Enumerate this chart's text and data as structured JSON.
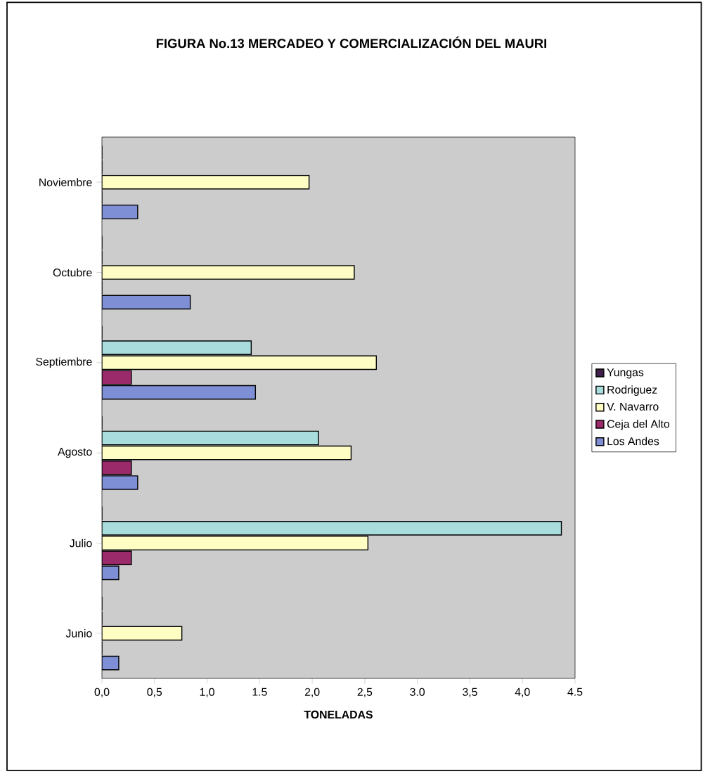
{
  "chart_data": {
    "type": "bar",
    "orientation": "horizontal",
    "title": "FIGURA No.13 MERCADEO Y COMERCIALIZACIÓN DEL MAURI",
    "xlabel": "TONELADAS",
    "categories": [
      "Noviembre",
      "Octubre",
      "Septiembre",
      "Agosto",
      "Julio",
      "Junio"
    ],
    "series": [
      {
        "name": "Yungas",
        "color": "#3d1f4a",
        "values": [
          0,
          0,
          0,
          0,
          0,
          0
        ]
      },
      {
        "name": "Rodriguez",
        "color": "#a9dcdc",
        "values": [
          0,
          0,
          1.42,
          2.06,
          4.37,
          0
        ]
      },
      {
        "name": "V. Navarro",
        "color": "#fefdc4",
        "values": [
          1.97,
          2.4,
          2.61,
          2.37,
          2.53,
          0.76
        ]
      },
      {
        "name": "Ceja del Alto",
        "color": "#9a2a6a",
        "values": [
          0,
          0,
          0.28,
          0.28,
          0.28,
          0
        ]
      },
      {
        "name": "Los Andes",
        "color": "#7e8fd6",
        "values": [
          0.34,
          0.84,
          1.46,
          0.34,
          0.16,
          0.16
        ]
      }
    ],
    "xlim": [
      0,
      4.5
    ],
    "xticks": [
      {
        "value": 0,
        "label": "0,0"
      },
      {
        "value": 0.5,
        "label": "0,5"
      },
      {
        "value": 1,
        "label": "1,0"
      },
      {
        "value": 1.5,
        "label": "1.5"
      },
      {
        "value": 2,
        "label": "2,0"
      },
      {
        "value": 2.5,
        "label": "2,5"
      },
      {
        "value": 3,
        "label": "3.0"
      },
      {
        "value": 3.5,
        "label": "3,5"
      },
      {
        "value": 4,
        "label": "4,0"
      },
      {
        "value": 4.5,
        "label": "4.5"
      }
    ],
    "legend": "right",
    "grid": false
  }
}
